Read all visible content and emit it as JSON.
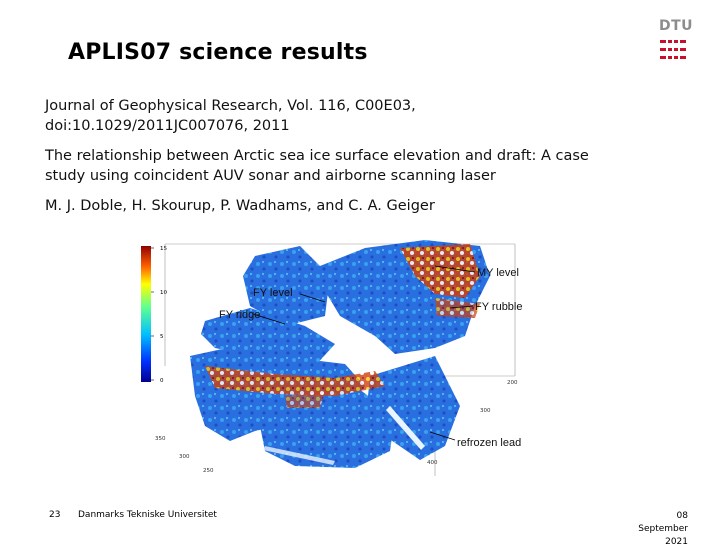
{
  "slide": {
    "title": "APLIS07 science results",
    "reference": {
      "journal_line1": "Journal of Geophysical Research, Vol. 116, C00E03,",
      "journal_line2": "doi:10.1029/2011JC007076, 2011",
      "paper_title_line1": "The relationship between Arctic sea ice surface elevation and draft: A case",
      "paper_title_line2": "study using coincident AUV sonar and airborne scanning laser",
      "authors": "M. J. Doble, H. Skourup, P. Wadhams, and C. A. Geiger"
    },
    "logo": {
      "text": "DTU",
      "color": "#c8102e"
    },
    "figure": {
      "colorbar_ticks": [
        "15",
        "10",
        "5",
        "0"
      ],
      "labels": {
        "my_level": "MY level",
        "fy_level": "FY level",
        "fy_rubble": "FY rubble",
        "fy_ridge": "FY ridge",
        "refrozen_lead": "refrozen lead"
      },
      "axis_ticks": {
        "right_200": "200",
        "right_300": "300",
        "right_400": "400",
        "left_350": "350",
        "left_300": "300",
        "left_250": "250"
      }
    }
  },
  "footer": {
    "page_number": "23",
    "organization": "Danmarks Tekniske Universitet",
    "date_line1": "08",
    "date_line2": "September",
    "date_line3": "2021"
  }
}
